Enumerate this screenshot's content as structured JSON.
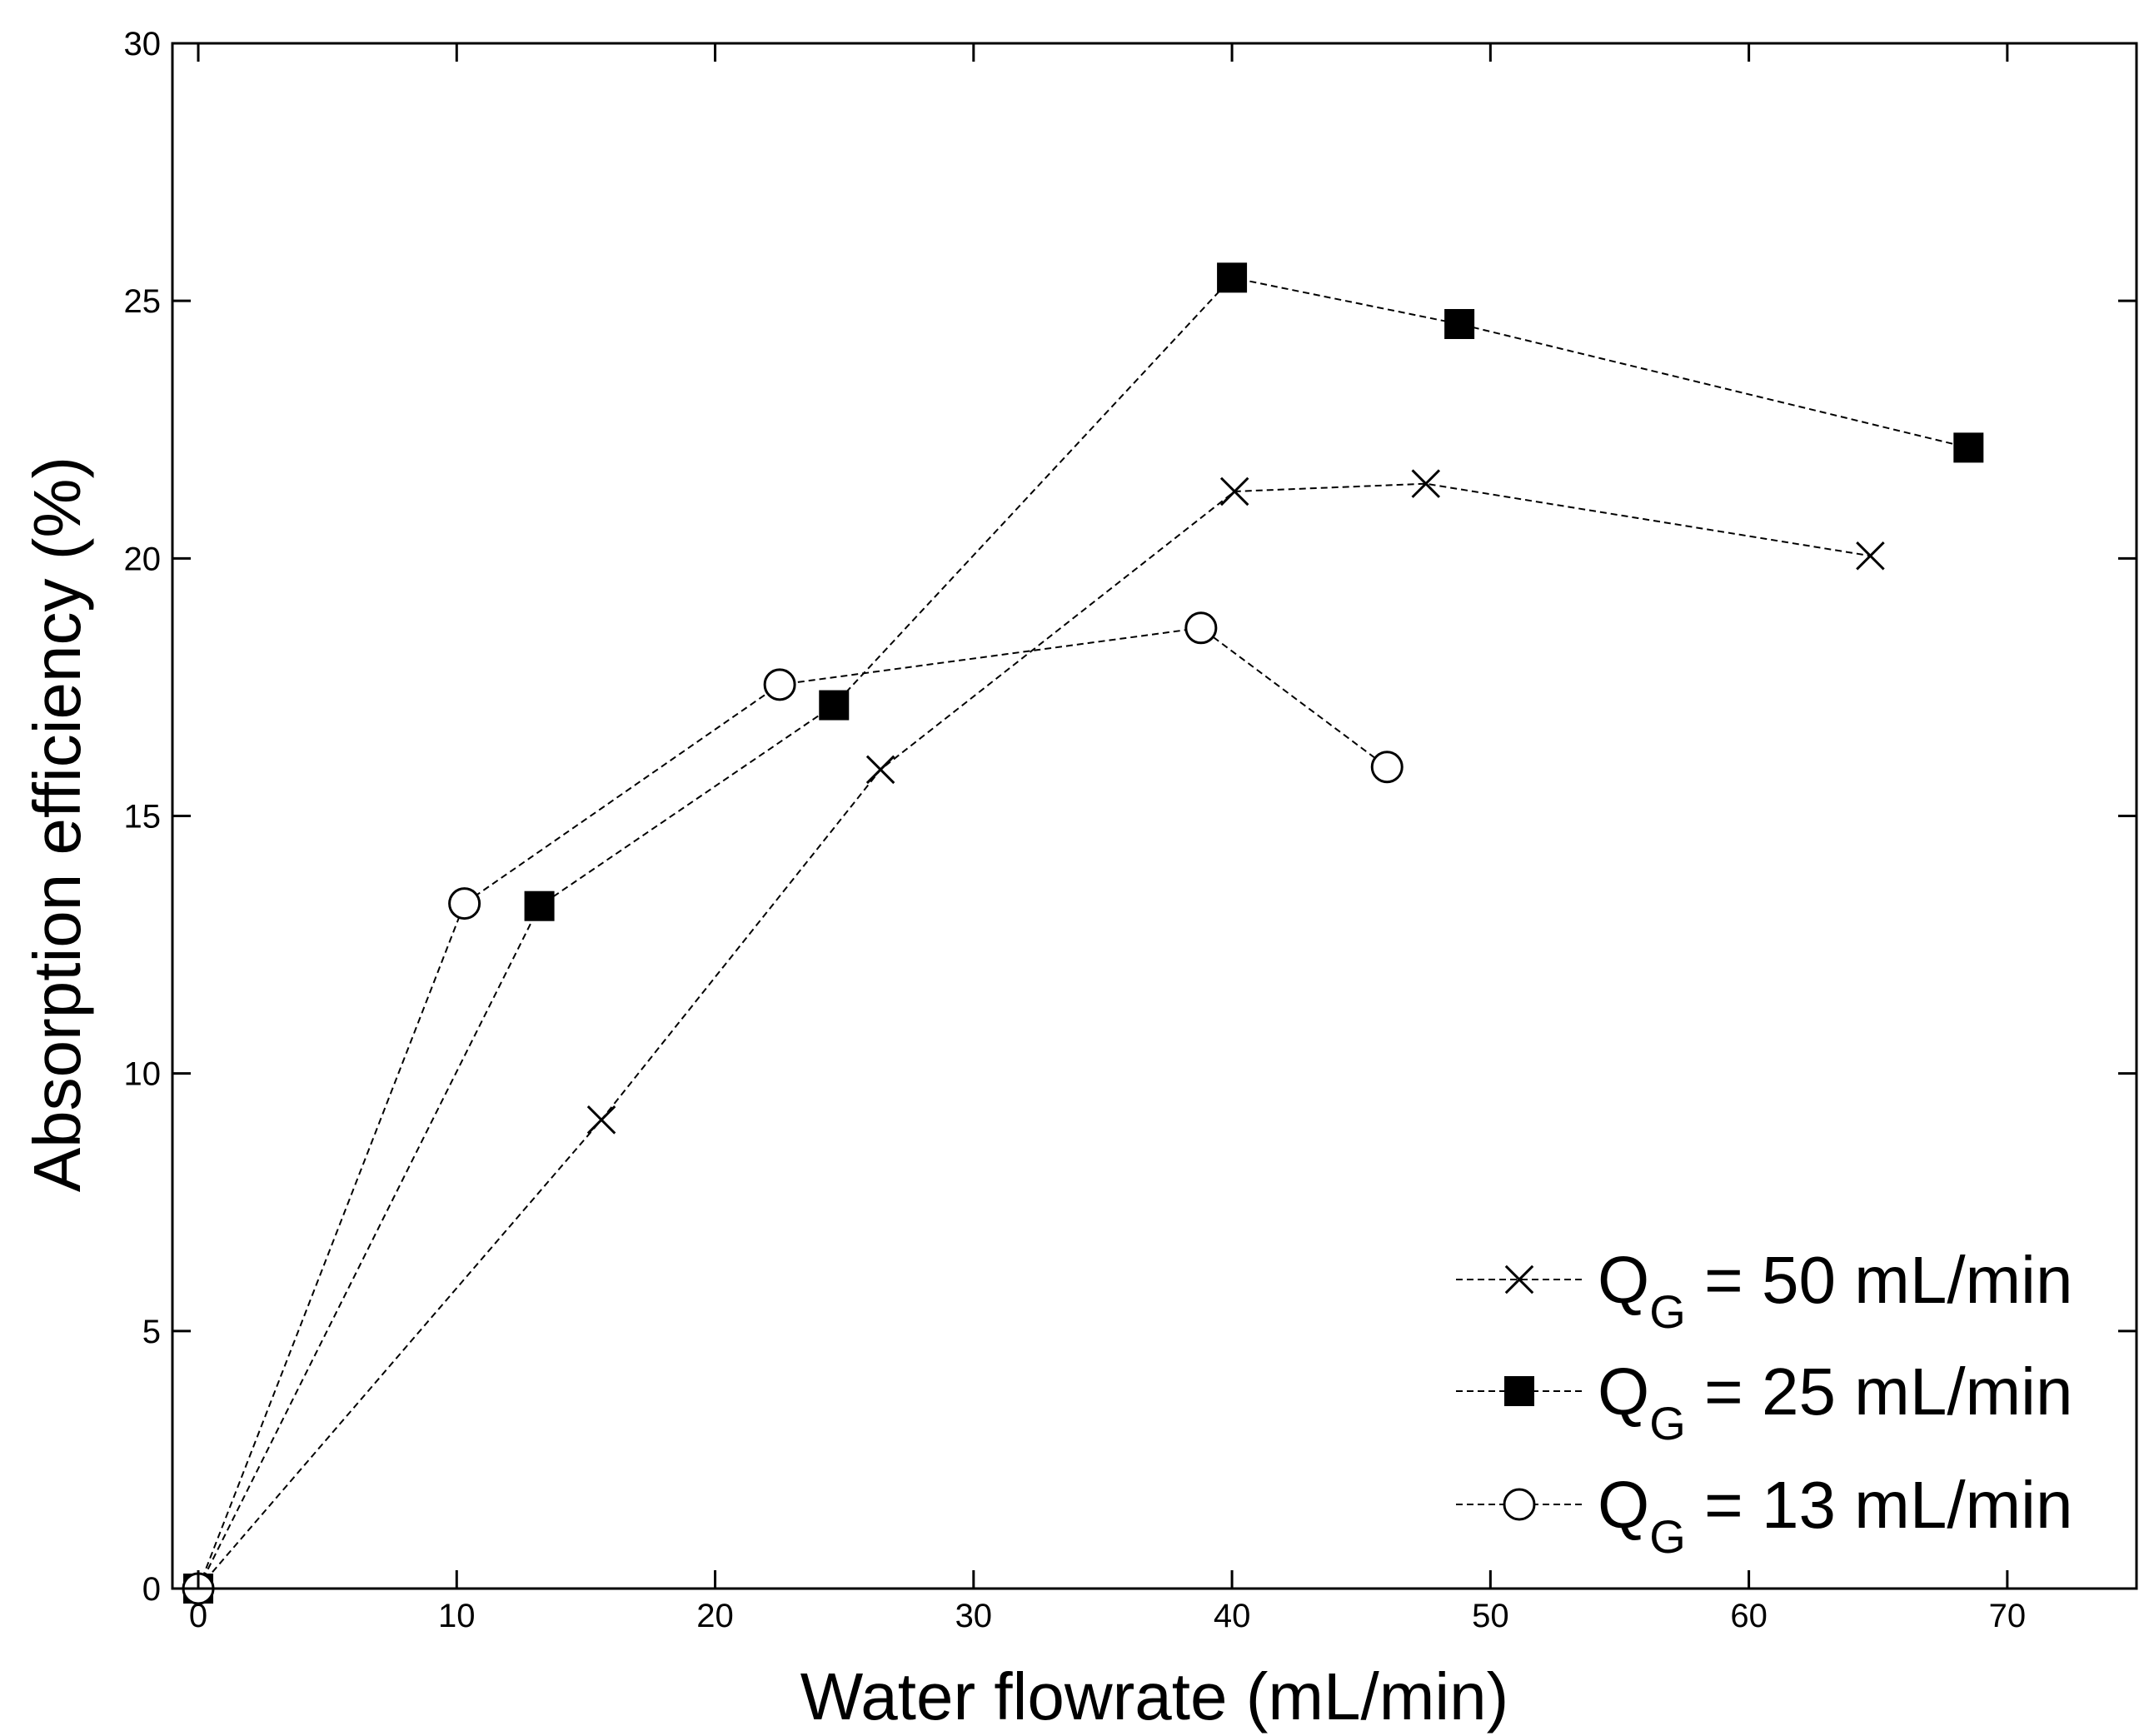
{
  "chart_data": {
    "type": "line",
    "title": "",
    "xlabel": "Water flowrate (mL/min)",
    "ylabel": "Absorption efficiency (%)",
    "xlim": [
      -1,
      75
    ],
    "ylim": [
      0,
      30
    ],
    "xticks": [
      0,
      10,
      20,
      30,
      40,
      50,
      60,
      70
    ],
    "yticks": [
      0,
      5,
      10,
      15,
      20,
      25,
      30
    ],
    "xtick_labels": [
      "0",
      "10",
      "20",
      "30",
      "40",
      "50",
      "60",
      "70"
    ],
    "ytick_labels": [
      "0",
      "5",
      "10",
      "15",
      "20",
      "25",
      "30"
    ],
    "grid": false,
    "legend_position": "bottom-right",
    "series": [
      {
        "name": "Q_G = 50 mL/min",
        "label_main": "Q",
        "label_sub": "G",
        "label_rest": " = 50 mL/min",
        "marker": "x",
        "line_style": "dashed",
        "color": "#000000",
        "x": [
          0,
          15.6,
          26.4,
          40.1,
          47.5,
          64.7
        ],
        "y": [
          0,
          9.1,
          15.9,
          21.3,
          21.45,
          20.05
        ]
      },
      {
        "name": "Q_G = 25 mL/min",
        "label_main": "Q",
        "label_sub": "G",
        "label_rest": " = 25 mL/min",
        "marker": "filled-square",
        "line_style": "dashed",
        "color": "#000000",
        "x": [
          0,
          13.2,
          24.6,
          40.0,
          48.8,
          68.5
        ],
        "y": [
          0,
          13.25,
          17.15,
          25.45,
          24.55,
          22.15
        ]
      },
      {
        "name": "Q_G = 13 mL/min",
        "label_main": "Q",
        "label_sub": "G",
        "label_rest": " = 13 mL/min",
        "marker": "open-circle",
        "line_style": "dashed",
        "color": "#000000",
        "x": [
          0,
          10.3,
          22.5,
          38.8,
          46.0
        ],
        "y": [
          0,
          13.3,
          17.55,
          18.65,
          15.95
        ]
      }
    ]
  }
}
